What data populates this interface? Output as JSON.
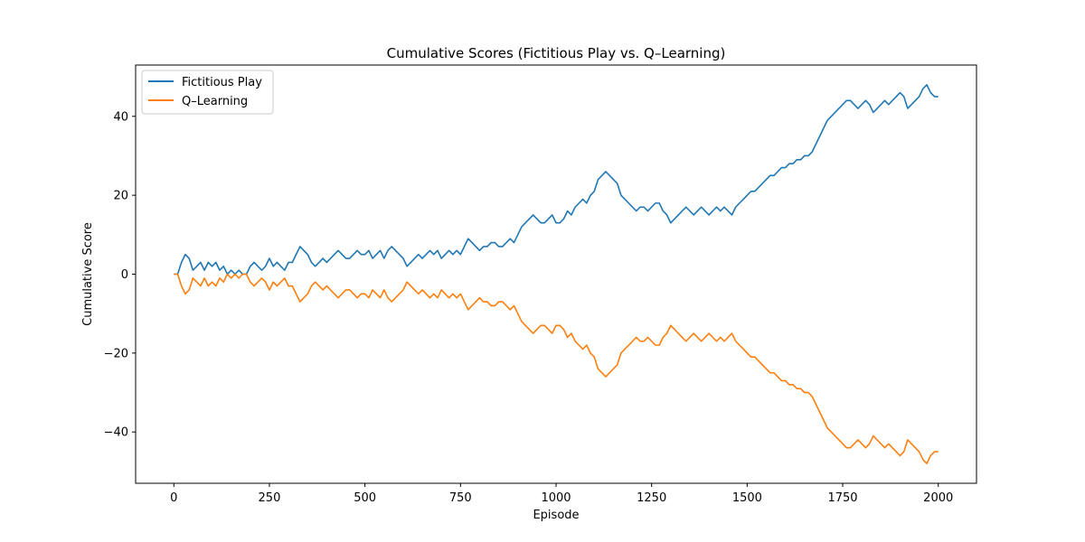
{
  "chart_data": {
    "type": "line",
    "title": "Cumulative Scores (Fictitious Play vs. Q–Learning)",
    "xlabel": "Episode",
    "ylabel": "Cumulative Score",
    "xlim": [
      -100,
      2100
    ],
    "ylim": [
      -53,
      53
    ],
    "xticks": [
      0,
      250,
      500,
      750,
      1000,
      1250,
      1500,
      1750,
      2000
    ],
    "yticks": [
      -40,
      -20,
      0,
      20,
      40
    ],
    "xtick_labels": [
      "0",
      "250",
      "500",
      "750",
      "1000",
      "1250",
      "1500",
      "1750",
      "2000"
    ],
    "ytick_labels": [
      "−40",
      "−20",
      "0",
      "20",
      "40"
    ],
    "grid": false,
    "legend_position": "top-left",
    "x": [
      0,
      10,
      20,
      30,
      40,
      50,
      60,
      70,
      80,
      90,
      100,
      110,
      120,
      130,
      140,
      150,
      160,
      170,
      180,
      190,
      200,
      210,
      220,
      230,
      240,
      250,
      260,
      270,
      280,
      290,
      300,
      310,
      320,
      330,
      340,
      350,
      360,
      370,
      380,
      390,
      400,
      410,
      420,
      430,
      440,
      450,
      460,
      470,
      480,
      490,
      500,
      510,
      520,
      530,
      540,
      550,
      560,
      570,
      580,
      590,
      600,
      610,
      620,
      630,
      640,
      650,
      660,
      670,
      680,
      690,
      700,
      710,
      720,
      730,
      740,
      750,
      760,
      770,
      780,
      790,
      800,
      810,
      820,
      830,
      840,
      850,
      860,
      870,
      880,
      890,
      900,
      910,
      920,
      930,
      940,
      950,
      960,
      970,
      980,
      990,
      1000,
      1010,
      1020,
      1030,
      1040,
      1050,
      1060,
      1070,
      1080,
      1090,
      1100,
      1110,
      1120,
      1130,
      1140,
      1150,
      1160,
      1170,
      1180,
      1190,
      1200,
      1210,
      1220,
      1230,
      1240,
      1250,
      1260,
      1270,
      1280,
      1290,
      1300,
      1310,
      1320,
      1330,
      1340,
      1350,
      1360,
      1370,
      1380,
      1390,
      1400,
      1410,
      1420,
      1430,
      1440,
      1450,
      1460,
      1470,
      1480,
      1490,
      1500,
      1510,
      1520,
      1530,
      1540,
      1550,
      1560,
      1570,
      1580,
      1590,
      1600,
      1610,
      1620,
      1630,
      1640,
      1650,
      1660,
      1670,
      1680,
      1690,
      1700,
      1710,
      1720,
      1730,
      1740,
      1750,
      1760,
      1770,
      1780,
      1790,
      1800,
      1810,
      1820,
      1830,
      1840,
      1850,
      1860,
      1870,
      1880,
      1890,
      1900,
      1910,
      1920,
      1930,
      1940,
      1950,
      1960,
      1970,
      1980,
      1990,
      2000
    ],
    "series": [
      {
        "name": "Fictitious Play",
        "color": "#1f77b4",
        "values": [
          0,
          0,
          3,
          5,
          4,
          1,
          2,
          3,
          1,
          3,
          2,
          3,
          1,
          2,
          0,
          1,
          0,
          1,
          0,
          0,
          2,
          3,
          2,
          1,
          2,
          4,
          2,
          3,
          2,
          1,
          3,
          3,
          5,
          7,
          6,
          5,
          3,
          2,
          3,
          4,
          3,
          4,
          5,
          6,
          5,
          4,
          4,
          5,
          6,
          5,
          5,
          6,
          4,
          5,
          6,
          4,
          6,
          7,
          6,
          5,
          4,
          2,
          3,
          4,
          5,
          4,
          5,
          6,
          5,
          6,
          4,
          5,
          6,
          5,
          6,
          5,
          7,
          9,
          8,
          7,
          6,
          7,
          7,
          8,
          8,
          7,
          7,
          8,
          9,
          8,
          10,
          12,
          13,
          14,
          15,
          14,
          13,
          13,
          14,
          15,
          13,
          13,
          14,
          16,
          15,
          17,
          18,
          19,
          18,
          20,
          21,
          24,
          25,
          26,
          25,
          24,
          23,
          20,
          19,
          18,
          17,
          16,
          17,
          17,
          16,
          17,
          18,
          18,
          16,
          15,
          13,
          14,
          15,
          16,
          17,
          16,
          15,
          16,
          17,
          16,
          15,
          16,
          17,
          16,
          17,
          16,
          15,
          17,
          18,
          19,
          20,
          21,
          21,
          22,
          23,
          24,
          25,
          25,
          26,
          27,
          27,
          28,
          28,
          29,
          29,
          30,
          30,
          31,
          33,
          35,
          37,
          39,
          40,
          41,
          42,
          43,
          44,
          44,
          43,
          42,
          43,
          44,
          43,
          41,
          42,
          43,
          44,
          43,
          44,
          45,
          46,
          45,
          42,
          43,
          44,
          45,
          47,
          48,
          46,
          45,
          45
        ]
      },
      {
        "name": "Q–Learning",
        "color": "#ff7f0e",
        "values": [
          0,
          0,
          -3,
          -5,
          -4,
          -1,
          -2,
          -3,
          -1,
          -3,
          -2,
          -3,
          -1,
          -2,
          0,
          -1,
          0,
          -1,
          0,
          0,
          -2,
          -3,
          -2,
          -1,
          -2,
          -4,
          -2,
          -3,
          -2,
          -1,
          -3,
          -3,
          -5,
          -7,
          -6,
          -5,
          -3,
          -2,
          -3,
          -4,
          -3,
          -4,
          -5,
          -6,
          -5,
          -4,
          -4,
          -5,
          -6,
          -5,
          -5,
          -6,
          -4,
          -5,
          -6,
          -4,
          -6,
          -7,
          -6,
          -5,
          -4,
          -2,
          -3,
          -4,
          -5,
          -4,
          -5,
          -6,
          -5,
          -6,
          -4,
          -5,
          -6,
          -5,
          -6,
          -5,
          -7,
          -9,
          -8,
          -7,
          -6,
          -7,
          -7,
          -8,
          -8,
          -7,
          -7,
          -8,
          -9,
          -8,
          -10,
          -12,
          -13,
          -14,
          -15,
          -14,
          -13,
          -13,
          -14,
          -15,
          -13,
          -13,
          -14,
          -16,
          -15,
          -17,
          -18,
          -19,
          -18,
          -20,
          -21,
          -24,
          -25,
          -26,
          -25,
          -24,
          -23,
          -20,
          -19,
          -18,
          -17,
          -16,
          -17,
          -17,
          -16,
          -17,
          -18,
          -18,
          -16,
          -15,
          -13,
          -14,
          -15,
          -16,
          -17,
          -16,
          -15,
          -16,
          -17,
          -16,
          -15,
          -16,
          -17,
          -16,
          -17,
          -16,
          -15,
          -17,
          -18,
          -19,
          -20,
          -21,
          -21,
          -22,
          -23,
          -24,
          -25,
          -25,
          -26,
          -27,
          -27,
          -28,
          -28,
          -29,
          -29,
          -30,
          -30,
          -31,
          -33,
          -35,
          -37,
          -39,
          -40,
          -41,
          -42,
          -43,
          -44,
          -44,
          -43,
          -42,
          -43,
          -44,
          -43,
          -41,
          -42,
          -43,
          -44,
          -43,
          -44,
          -45,
          -46,
          -45,
          -42,
          -43,
          -44,
          -45,
          -47,
          -48,
          -46,
          -45,
          -45
        ]
      }
    ]
  }
}
